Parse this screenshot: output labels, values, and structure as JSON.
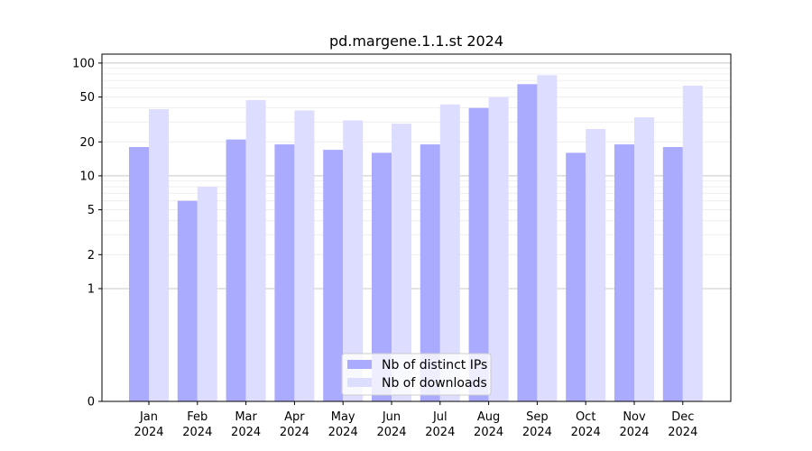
{
  "chart_data": {
    "type": "bar",
    "title": "pd.margene.1.1.st 2024",
    "xlabel": "",
    "ylabel": "",
    "yscale": "symlog",
    "ylim": [
      0,
      120
    ],
    "yticks": [
      0,
      1,
      2,
      5,
      10,
      20,
      50,
      100
    ],
    "ytick_labels": [
      "0",
      "1",
      "2",
      "5",
      "10",
      "20",
      "50",
      "100"
    ],
    "grid": true,
    "legend_position": "bottom-center",
    "categories": [
      "Jan\n2024",
      "Feb\n2024",
      "Mar\n2024",
      "Apr\n2024",
      "May\n2024",
      "Jun\n2024",
      "Jul\n2024",
      "Aug\n2024",
      "Sep\n2024",
      "Oct\n2024",
      "Nov\n2024",
      "Dec\n2024"
    ],
    "series": [
      {
        "name": "Nb of distinct IPs",
        "color": "#aaaaff",
        "values": [
          18,
          6,
          21,
          19,
          17,
          16,
          19,
          40,
          65,
          16,
          19,
          18
        ]
      },
      {
        "name": "Nb of downloads",
        "color": "#ddddff",
        "values": [
          39,
          8,
          47,
          38,
          31,
          29,
          43,
          50,
          78,
          26,
          33,
          63
        ]
      }
    ]
  }
}
